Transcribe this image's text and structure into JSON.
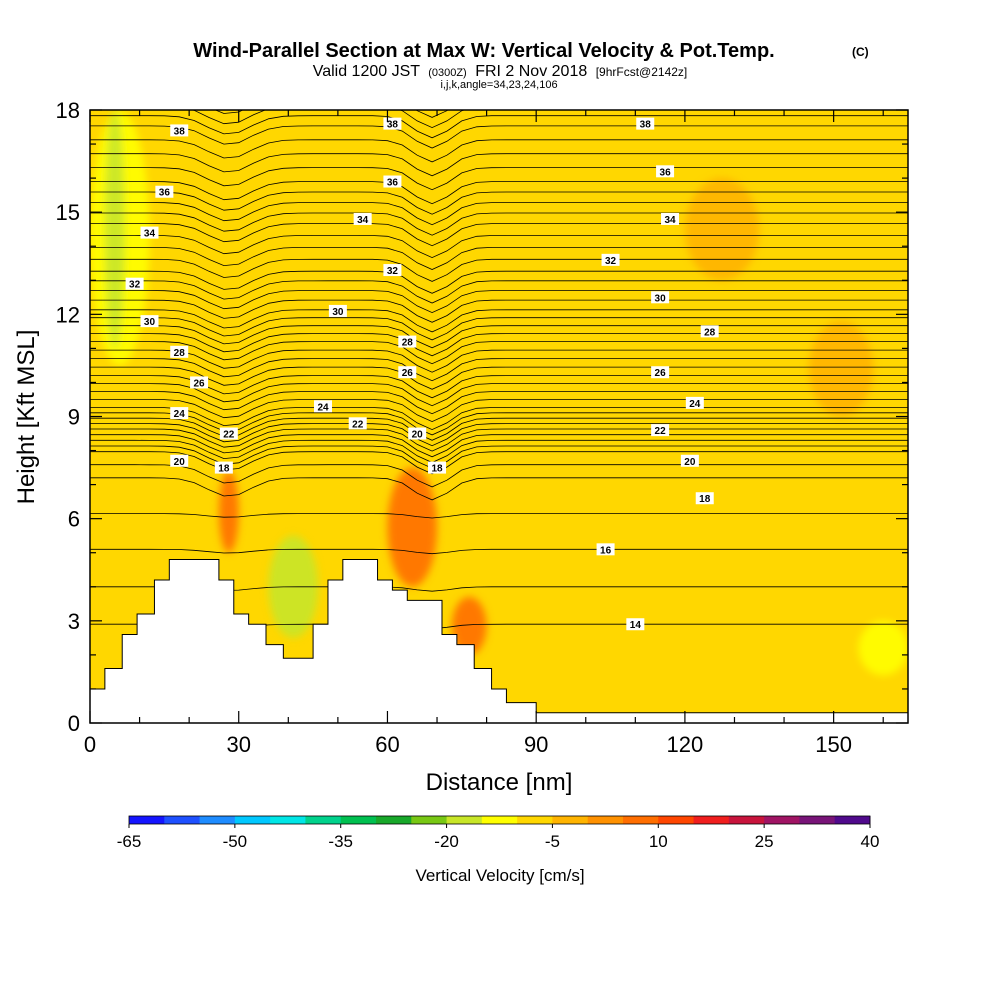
{
  "chart_data": {
    "type": "heatmap",
    "title": "Wind-Parallel Section at Max W: Vertical Velocity & Pot.Temp.",
    "title_mark": "(C)",
    "subtitle_main": "Valid 1200 JST",
    "subtitle_utc": "(0300Z)",
    "subtitle_date": "FRI 2 Nov 2018",
    "subtitle_fcst": "[9hrFcst@2142z]",
    "subtitle_indices": "i,j,k,angle=34,23,24,106",
    "xlabel": "Distance [nm]",
    "ylabel": "Height [Kft MSL]",
    "xlim": [
      0,
      165
    ],
    "ylim": [
      0,
      18
    ],
    "x_ticks": [
      "0",
      "30",
      "60",
      "90",
      "120",
      "150"
    ],
    "y_ticks": [
      "0",
      "3",
      "6",
      "9",
      "12",
      "15",
      "18"
    ],
    "colorbar": {
      "label": "Vertical Velocity [cm/s]",
      "tick_labels": [
        "-65",
        "-50",
        "-35",
        "-20",
        "-5",
        "10",
        "25",
        "40"
      ],
      "colors": [
        "#1414ff",
        "#1e50ff",
        "#1e8cff",
        "#00c8ff",
        "#00e6e6",
        "#00d28c",
        "#00c050",
        "#18a82a",
        "#78c814",
        "#c8e628",
        "#ffff00",
        "#ffd700",
        "#ffb400",
        "#ff9100",
        "#ff6e00",
        "#ff4600",
        "#f01e1e",
        "#c8143c",
        "#a01464",
        "#781478",
        "#500a8c"
      ]
    },
    "background_field": {
      "variable": "vertical velocity",
      "units": "cm/s",
      "base_color": "#ffd700",
      "regions": [
        {
          "x": [
            0,
            12
          ],
          "y": [
            10.5,
            18
          ],
          "color": "#ffff00"
        },
        {
          "x": [
            3,
            7
          ],
          "y": [
            11,
            18
          ],
          "color": "#c8e628"
        },
        {
          "x": [
            26,
            30
          ],
          "y": [
            5,
            7.4
          ],
          "color": "#ff6e00"
        },
        {
          "x": [
            36,
            46
          ],
          "y": [
            2.5,
            5.5
          ],
          "color": "#c8e628"
        },
        {
          "x": [
            60,
            70
          ],
          "y": [
            4,
            7.5
          ],
          "color": "#ff6e00"
        },
        {
          "x": [
            73,
            80
          ],
          "y": [
            2,
            3.7
          ],
          "color": "#ff6e00"
        },
        {
          "x": [
            120,
            135
          ],
          "y": [
            13,
            16
          ],
          "color": "#ffb400"
        },
        {
          "x": [
            145,
            158
          ],
          "y": [
            9,
            11.8
          ],
          "color": "#ffb400"
        },
        {
          "x": [
            155,
            165
          ],
          "y": [
            1.4,
            3
          ],
          "color": "#ffff00"
        }
      ]
    },
    "contour_field": {
      "variable": "potential temperature",
      "units": "C",
      "labeled_values": [
        14,
        16,
        18,
        20,
        22,
        24,
        26,
        28,
        30,
        32,
        34,
        36,
        38
      ]
    },
    "contour_labels": [
      {
        "text": "38",
        "x": 18,
        "y": 17.4
      },
      {
        "text": "38",
        "x": 61,
        "y": 17.6
      },
      {
        "text": "38",
        "x": 112,
        "y": 17.6
      },
      {
        "text": "36",
        "x": 15,
        "y": 15.6
      },
      {
        "text": "36",
        "x": 61,
        "y": 15.9
      },
      {
        "text": "36",
        "x": 116,
        "y": 16.2
      },
      {
        "text": "34",
        "x": 12,
        "y": 14.4
      },
      {
        "text": "34",
        "x": 55,
        "y": 14.8
      },
      {
        "text": "34",
        "x": 117,
        "y": 14.8
      },
      {
        "text": "32",
        "x": 9,
        "y": 12.9
      },
      {
        "text": "32",
        "x": 61,
        "y": 13.3
      },
      {
        "text": "32",
        "x": 105,
        "y": 13.6
      },
      {
        "text": "30",
        "x": 12,
        "y": 11.8
      },
      {
        "text": "30",
        "x": 50,
        "y": 12.1
      },
      {
        "text": "30",
        "x": 115,
        "y": 12.5
      },
      {
        "text": "28",
        "x": 18,
        "y": 10.9
      },
      {
        "text": "28",
        "x": 64,
        "y": 11.2
      },
      {
        "text": "28",
        "x": 125,
        "y": 11.5
      },
      {
        "text": "26",
        "x": 22,
        "y": 10
      },
      {
        "text": "26",
        "x": 64,
        "y": 10.3
      },
      {
        "text": "26",
        "x": 115,
        "y": 10.3
      },
      {
        "text": "24",
        "x": 18,
        "y": 9.1
      },
      {
        "text": "24",
        "x": 47,
        "y": 9.3
      },
      {
        "text": "24",
        "x": 122,
        "y": 9.4
      },
      {
        "text": "22",
        "x": 28,
        "y": 8.5
      },
      {
        "text": "22",
        "x": 54,
        "y": 8.8
      },
      {
        "text": "22",
        "x": 115,
        "y": 8.6
      },
      {
        "text": "20",
        "x": 18,
        "y": 7.7
      },
      {
        "text": "20",
        "x": 66,
        "y": 8.5
      },
      {
        "text": "20",
        "x": 121,
        "y": 7.7
      },
      {
        "text": "18",
        "x": 27,
        "y": 7.5
      },
      {
        "text": "18",
        "x": 70,
        "y": 7.5
      },
      {
        "text": "18",
        "x": 124,
        "y": 6.6
      },
      {
        "text": "16",
        "x": 104,
        "y": 5.1
      },
      {
        "text": "14",
        "x": 110,
        "y": 2.9
      }
    ],
    "terrain_profile": [
      [
        0,
        1
      ],
      [
        3,
        1
      ],
      [
        3,
        1.6
      ],
      [
        6.5,
        1.6
      ],
      [
        6.5,
        2.6
      ],
      [
        9.5,
        2.6
      ],
      [
        9.5,
        3.2
      ],
      [
        13,
        3.2
      ],
      [
        13,
        4.2
      ],
      [
        16,
        4.2
      ],
      [
        16,
        4.8
      ],
      [
        26,
        4.8
      ],
      [
        26,
        4.2
      ],
      [
        29,
        4.2
      ],
      [
        29,
        3.2
      ],
      [
        32,
        3.2
      ],
      [
        32,
        2.9
      ],
      [
        35.5,
        2.9
      ],
      [
        35.5,
        2.3
      ],
      [
        39,
        2.3
      ],
      [
        39,
        1.9
      ],
      [
        45,
        1.9
      ],
      [
        45,
        2.9
      ],
      [
        48,
        2.9
      ],
      [
        48,
        4.2
      ],
      [
        51,
        4.2
      ],
      [
        51,
        4.8
      ],
      [
        58,
        4.8
      ],
      [
        58,
        4.2
      ],
      [
        61,
        4.2
      ],
      [
        61,
        3.9
      ],
      [
        64,
        3.9
      ],
      [
        64,
        3.6
      ],
      [
        71,
        3.6
      ],
      [
        71,
        2.6
      ],
      [
        74,
        2.6
      ],
      [
        74,
        2.3
      ],
      [
        77.5,
        2.3
      ],
      [
        77.5,
        1.6
      ],
      [
        81,
        1.6
      ],
      [
        81,
        1
      ],
      [
        84,
        1
      ],
      [
        84,
        0.6
      ],
      [
        90,
        0.6
      ],
      [
        90,
        0.3
      ],
      [
        165,
        0.3
      ]
    ]
  }
}
